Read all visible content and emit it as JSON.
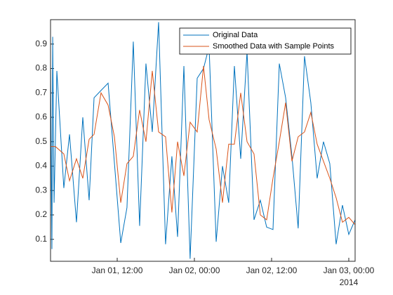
{
  "chart_data": {
    "type": "line",
    "xlim": [
      "2014-01-01T01:38",
      "2014-01-03T00:59"
    ],
    "xticks": [
      {
        "value": "2014-01-01T12:00",
        "label": "Jan 01, 12:00"
      },
      {
        "value": "2014-01-02T00:00",
        "label": "Jan 02, 00:00"
      },
      {
        "value": "2014-01-02T12:00",
        "label": "Jan 02, 12:00"
      },
      {
        "value": "2014-01-03T00:00",
        "label": "Jan 03, 00:00"
      }
    ],
    "x_secondary_label": "2014",
    "ylim": [
      0.01,
      1.0
    ],
    "yticks": [
      0.1,
      0.2,
      0.3,
      0.4,
      0.5,
      0.6,
      0.7,
      0.8,
      0.9
    ],
    "legend": "northeast",
    "series": [
      {
        "name": "Original Data",
        "color": "#0072bd",
        "x": [
          "2014-01-01T01:38",
          "2014-01-01T01:51",
          "2014-01-01T01:58",
          "2014-01-01T02:11",
          "2014-01-01T02:37",
          "2014-01-01T03:42",
          "2014-01-01T04:35",
          "2014-01-01T05:40",
          "2014-01-01T06:39",
          "2014-01-01T07:38",
          "2014-01-01T08:24",
          "2014-01-01T09:29",
          "2014-01-01T10:35",
          "2014-01-01T12:33",
          "2014-01-01T13:31",
          "2014-01-01T14:30",
          "2014-01-01T15:29",
          "2014-01-01T16:28",
          "2014-01-01T17:27",
          "2014-01-01T18:26",
          "2014-01-01T19:31",
          "2014-01-01T20:30",
          "2014-01-01T21:23",
          "2014-01-01T22:22",
          "2014-01-01T23:20",
          "2014-01-02T00:26",
          "2014-01-02T01:25",
          "2014-01-02T02:17",
          "2014-01-02T03:23",
          "2014-01-02T04:22",
          "2014-01-02T05:20",
          "2014-01-02T06:13",
          "2014-01-02T07:12",
          "2014-01-02T08:11",
          "2014-01-02T09:16",
          "2014-01-02T10:15",
          "2014-01-02T11:14",
          "2014-01-02T12:13",
          "2014-01-02T13:12",
          "2014-01-02T14:11",
          "2014-01-02T15:10",
          "2014-01-02T16:08",
          "2014-01-02T17:07",
          "2014-01-02T18:06",
          "2014-01-02T19:05",
          "2014-01-02T20:04",
          "2014-01-02T21:03",
          "2014-01-02T22:02",
          "2014-01-02T23:01",
          "2014-01-03T00:00",
          "2014-01-03T00:59"
        ],
        "values": [
          0.82,
          0.06,
          0.93,
          0.25,
          0.79,
          0.31,
          0.53,
          0.17,
          0.6,
          0.26,
          0.68,
          0.71,
          0.74,
          0.085,
          0.23,
          0.91,
          0.155,
          0.82,
          0.54,
          0.99,
          0.08,
          0.44,
          0.11,
          0.81,
          0.02,
          0.76,
          0.8,
          0.89,
          0.09,
          0.4,
          0.25,
          0.81,
          0.43,
          0.87,
          0.18,
          0.26,
          0.15,
          0.14,
          0.82,
          0.68,
          0.44,
          0.145,
          0.85,
          0.66,
          0.35,
          0.5,
          0.41,
          0.08,
          0.24,
          0.12,
          0.18
        ]
      },
      {
        "name": "Smoothed Data with Sample Points",
        "color": "#d95319",
        "x": [
          "2014-01-01T01:38",
          "2014-01-01T02:24",
          "2014-01-01T03:42",
          "2014-01-01T04:35",
          "2014-01-01T05:40",
          "2014-01-01T06:39",
          "2014-01-01T07:38",
          "2014-01-01T08:24",
          "2014-01-01T09:29",
          "2014-01-01T10:35",
          "2014-01-01T11:34",
          "2014-01-01T12:33",
          "2014-01-01T13:31",
          "2014-01-01T14:30",
          "2014-01-01T15:29",
          "2014-01-01T16:28",
          "2014-01-01T17:27",
          "2014-01-01T18:26",
          "2014-01-01T19:31",
          "2014-01-01T20:30",
          "2014-01-01T21:23",
          "2014-01-01T22:22",
          "2014-01-01T23:20",
          "2014-01-02T00:26",
          "2014-01-02T01:25",
          "2014-01-02T02:17",
          "2014-01-02T03:23",
          "2014-01-02T04:22",
          "2014-01-02T05:20",
          "2014-01-02T06:13",
          "2014-01-02T07:12",
          "2014-01-02T08:11",
          "2014-01-02T09:16",
          "2014-01-02T10:15",
          "2014-01-02T11:14",
          "2014-01-02T12:13",
          "2014-01-02T13:12",
          "2014-01-02T14:11",
          "2014-01-02T15:10",
          "2014-01-02T16:08",
          "2014-01-02T17:07",
          "2014-01-02T18:06",
          "2014-01-02T19:05",
          "2014-01-02T20:04",
          "2014-01-02T21:03",
          "2014-01-02T22:02",
          "2014-01-02T23:01",
          "2014-01-03T00:00",
          "2014-01-03T00:59"
        ],
        "values": [
          0.48,
          0.48,
          0.45,
          0.34,
          0.43,
          0.35,
          0.51,
          0.53,
          0.7,
          0.65,
          0.52,
          0.25,
          0.41,
          0.44,
          0.63,
          0.5,
          0.79,
          0.54,
          0.52,
          0.21,
          0.5,
          0.36,
          0.58,
          0.54,
          0.81,
          0.59,
          0.47,
          0.25,
          0.49,
          0.49,
          0.7,
          0.5,
          0.45,
          0.2,
          0.18,
          0.35,
          0.5,
          0.66,
          0.42,
          0.52,
          0.54,
          0.62,
          0.49,
          0.42,
          0.35,
          0.27,
          0.17,
          0.19,
          0.16
        ]
      }
    ]
  }
}
